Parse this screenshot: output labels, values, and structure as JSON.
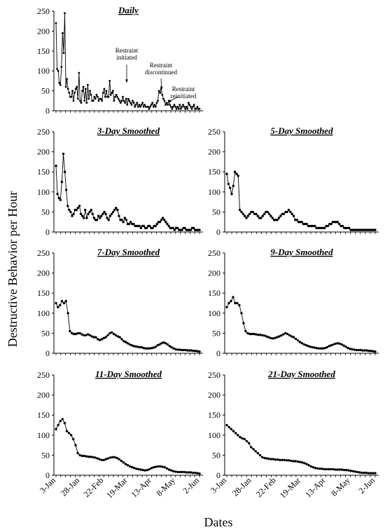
{
  "figure": {
    "ylabel": "Destructive Behavior per Hour",
    "xlabel": "Dates",
    "yticks": [
      "0",
      "50",
      "100",
      "150",
      "200",
      "250"
    ],
    "xticks": [
      "3-Jan",
      "28-Jan",
      "22-Feb",
      "19-Mar",
      "13-Apr",
      "8-May",
      "2-Jun"
    ],
    "annotations": [
      {
        "lines": [
          "Restraint",
          "initiated"
        ]
      },
      {
        "lines": [
          "Restraint",
          "discontinued"
        ]
      },
      {
        "lines": [
          "Restraint",
          "reinitiated"
        ]
      }
    ]
  },
  "chart_data": [
    {
      "type": "line",
      "title": "Daily",
      "x_unit": "days since 3-Jan",
      "ylim": [
        0,
        250
      ],
      "xlim": [
        0,
        150
      ],
      "values": [
        220,
        105,
        100,
        70,
        65,
        110,
        195,
        145,
        245,
        60,
        80,
        55,
        45,
        35,
        35,
        50,
        25,
        45,
        55,
        60,
        30,
        95,
        25,
        20,
        50,
        60,
        25,
        55,
        20,
        65,
        30,
        50,
        40,
        25,
        25,
        35,
        30,
        40,
        35,
        25,
        30,
        30,
        25,
        45,
        55,
        35,
        50,
        35,
        35,
        75,
        40,
        45,
        50,
        25,
        35,
        40,
        35,
        30,
        25,
        20,
        25,
        35,
        25,
        20,
        30,
        15,
        30,
        25,
        20,
        15,
        25,
        20,
        10,
        15,
        20,
        10,
        15,
        10,
        15,
        20,
        10,
        15,
        10,
        10,
        10,
        5,
        10,
        15,
        20,
        10,
        15,
        10,
        20,
        25,
        50,
        45,
        55,
        40,
        30,
        25,
        15,
        20,
        15,
        25,
        15,
        10,
        5,
        10,
        15,
        10,
        5,
        10,
        5,
        15,
        5,
        10,
        15,
        10,
        5,
        10,
        5,
        20,
        15,
        10,
        5,
        10,
        15,
        5,
        5,
        10,
        5,
        5
      ],
      "annotations": [
        "Restraint initiated",
        "Restraint discontinued",
        "Restraint reinitiated"
      ]
    },
    {
      "type": "line",
      "title": "3-Day Smoothed",
      "ylim": [
        0,
        250
      ],
      "values": [
        165,
        95,
        85,
        80,
        125,
        195,
        150,
        105,
        65,
        55,
        50,
        40,
        45,
        55,
        55,
        60,
        65,
        45,
        40,
        35,
        55,
        35,
        45,
        50,
        55,
        45,
        35,
        30,
        30,
        40,
        35,
        40,
        45,
        50,
        45,
        35,
        30,
        40,
        45,
        50,
        55,
        60,
        55,
        40,
        30,
        30,
        25,
        35,
        30,
        20,
        20,
        25,
        20,
        20,
        15,
        15,
        15,
        15,
        10,
        15,
        15,
        10,
        10,
        15,
        15,
        10,
        10,
        15,
        15,
        20,
        25,
        25,
        30,
        35,
        30,
        25,
        20,
        15,
        10,
        10,
        10,
        5,
        10,
        10,
        5,
        5,
        5,
        10,
        10,
        5,
        5,
        5,
        5,
        10,
        10,
        5,
        5,
        5,
        5
      ]
    },
    {
      "type": "line",
      "title": "5-Day Smoothed",
      "ylim": [
        0,
        250
      ],
      "values": [
        145,
        120,
        110,
        95,
        115,
        150,
        145,
        140,
        55,
        50,
        45,
        40,
        35,
        40,
        45,
        50,
        50,
        45,
        45,
        40,
        35,
        35,
        40,
        45,
        50,
        50,
        45,
        40,
        35,
        30,
        30,
        30,
        35,
        40,
        45,
        45,
        50,
        50,
        55,
        50,
        45,
        40,
        30,
        30,
        25,
        25,
        25,
        20,
        20,
        20,
        15,
        15,
        15,
        15,
        15,
        10,
        10,
        10,
        10,
        10,
        10,
        15,
        15,
        20,
        20,
        25,
        25,
        25,
        25,
        20,
        15,
        15,
        10,
        10,
        10,
        10,
        5,
        5,
        5,
        5,
        5,
        5,
        5,
        5,
        5,
        5,
        5,
        5,
        5,
        5,
        5,
        5
      ]
    },
    {
      "type": "line",
      "title": "7-Day Smoothed",
      "ylim": [
        0,
        250
      ],
      "values": [
        125,
        115,
        120,
        130,
        125,
        130,
        100,
        55,
        50,
        48,
        48,
        50,
        50,
        47,
        45,
        45,
        47,
        45,
        42,
        40,
        40,
        35,
        33,
        35,
        38,
        40,
        45,
        50,
        52,
        48,
        45,
        42,
        40,
        35,
        30,
        28,
        25,
        22,
        20,
        18,
        17,
        16,
        15,
        15,
        13,
        12,
        12,
        12,
        13,
        14,
        16,
        20,
        22,
        25,
        27,
        25,
        22,
        18,
        15,
        12,
        10,
        9,
        9,
        8,
        8,
        8,
        7,
        7,
        7,
        6,
        6,
        5,
        4
      ]
    },
    {
      "type": "line",
      "title": "9-Day Smoothed",
      "ylim": [
        0,
        250
      ],
      "values": [
        115,
        125,
        130,
        140,
        125,
        125,
        120,
        100,
        75,
        55,
        50,
        48,
        48,
        48,
        47,
        46,
        46,
        45,
        44,
        42,
        40,
        38,
        37,
        38,
        40,
        42,
        44,
        47,
        50,
        48,
        45,
        42,
        40,
        36,
        32,
        28,
        25,
        22,
        20,
        18,
        16,
        15,
        14,
        13,
        12,
        12,
        12,
        13,
        15,
        18,
        20,
        22,
        24,
        25,
        24,
        22,
        19,
        16,
        13,
        11,
        10,
        9,
        8,
        8,
        8,
        7,
        7,
        7,
        6,
        6,
        5,
        4
      ]
    },
    {
      "type": "line",
      "title": "11-Day Smoothed",
      "ylim": [
        0,
        250
      ],
      "values": [
        115,
        125,
        135,
        140,
        130,
        110,
        105,
        100,
        90,
        75,
        55,
        50,
        48,
        48,
        47,
        46,
        46,
        45,
        44,
        42,
        40,
        38,
        38,
        40,
        42,
        44,
        45,
        45,
        43,
        40,
        36,
        32,
        28,
        25,
        22,
        20,
        18,
        16,
        15,
        14,
        13,
        12,
        13,
        15,
        18,
        20,
        21,
        22,
        22,
        21,
        20,
        17,
        14,
        12,
        10,
        9,
        8,
        8,
        8,
        8,
        7,
        7,
        7,
        6,
        6,
        5,
        4
      ]
    },
    {
      "type": "line",
      "title": "21-Day Smoothed",
      "ylim": [
        0,
        250
      ],
      "values": [
        125,
        120,
        115,
        110,
        105,
        100,
        95,
        92,
        90,
        85,
        80,
        70,
        65,
        60,
        55,
        50,
        45,
        43,
        42,
        41,
        40,
        40,
        39,
        39,
        38,
        38,
        38,
        37,
        37,
        36,
        35,
        35,
        34,
        33,
        32,
        30,
        28,
        25,
        22,
        20,
        18,
        17,
        16,
        16,
        15,
        15,
        15,
        15,
        15,
        14,
        14,
        14,
        14,
        13,
        13,
        12,
        11,
        10,
        9,
        8,
        7,
        6,
        6,
        6,
        5,
        5,
        5,
        5
      ]
    }
  ]
}
